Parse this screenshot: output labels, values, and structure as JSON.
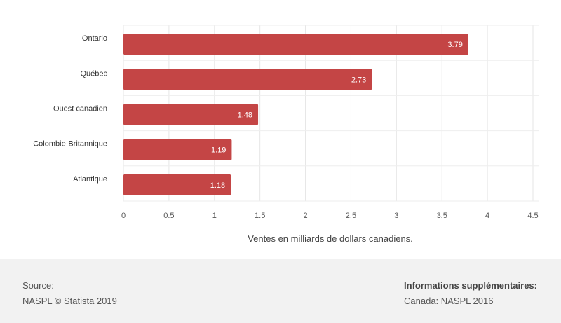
{
  "chart_data": {
    "type": "bar",
    "orientation": "horizontal",
    "categories": [
      "Ontario",
      "Québec",
      "Ouest canadien",
      "Colombie-Britannique",
      "Atlantique"
    ],
    "values": [
      3.79,
      2.73,
      1.48,
      1.19,
      1.18
    ],
    "value_labels": [
      "3.79",
      "2.73",
      "1.48",
      "1.19",
      "1.18"
    ],
    "xlabel": "Ventes en milliards de dollars canadiens.",
    "xlim": [
      0,
      4.5
    ],
    "xticks": [
      0,
      0.5,
      1,
      1.5,
      2,
      2.5,
      3,
      3.5,
      4,
      4.5
    ],
    "xtick_labels": [
      "0",
      "0.5",
      "1",
      "1.5",
      "2",
      "2.5",
      "3",
      "3.5",
      "4",
      "4.5"
    ],
    "grid": true,
    "bar_color": "#c44545"
  },
  "footer": {
    "source_label": "Source:",
    "source_value": "NASPL © Statista 2019",
    "info_heading": "Informations supplémentaires:",
    "info_value": "Canada: NASPL 2016"
  }
}
